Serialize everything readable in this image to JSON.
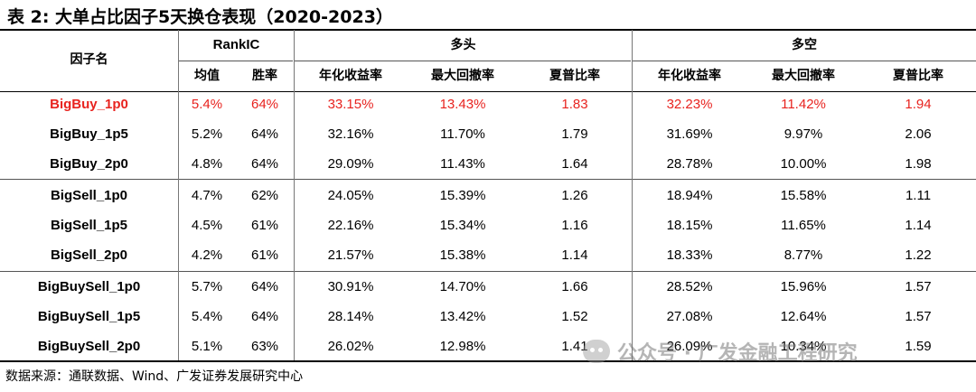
{
  "title": "表 2:  大单占比因子5天换仓表现（2020-2023）",
  "source": "数据来源：通联数据、Wind、广发证券发展研究中心",
  "watermark": "公众号 · 广发金融工程研究",
  "headers": {
    "factor": "因子名",
    "group_rankic": "RankIC",
    "group_long": "多头",
    "group_longshort": "多空",
    "mean": "均值",
    "winrate": "胜率",
    "long_ann": "年化收益率",
    "long_mdd": "最大回撤率",
    "long_sharpe": "夏普比率",
    "ls_ann": "年化收益率",
    "ls_mdd": "最大回撤率",
    "ls_sharpe": "夏普比率"
  },
  "highlight_color": "#e8231f",
  "rows": [
    {
      "name": "BigBuy_1p0",
      "highlight": true,
      "mean": "5.4%",
      "winrate": "64%",
      "long_ann": "33.15%",
      "long_mdd": "13.43%",
      "long_sharpe": "1.83",
      "ls_ann": "32.23%",
      "ls_mdd": "11.42%",
      "ls_sharpe": "1.94"
    },
    {
      "name": "BigBuy_1p5",
      "highlight": false,
      "mean": "5.2%",
      "winrate": "64%",
      "long_ann": "32.16%",
      "long_mdd": "11.70%",
      "long_sharpe": "1.79",
      "ls_ann": "31.69%",
      "ls_mdd": "9.97%",
      "ls_sharpe": "2.06"
    },
    {
      "name": "BigBuy_2p0",
      "highlight": false,
      "mean": "4.8%",
      "winrate": "64%",
      "long_ann": "29.09%",
      "long_mdd": "11.43%",
      "long_sharpe": "1.64",
      "ls_ann": "28.78%",
      "ls_mdd": "10.00%",
      "ls_sharpe": "1.98"
    },
    {
      "name": "BigSell_1p0",
      "highlight": false,
      "mean": "4.7%",
      "winrate": "62%",
      "long_ann": "24.05%",
      "long_mdd": "15.39%",
      "long_sharpe": "1.26",
      "ls_ann": "18.94%",
      "ls_mdd": "15.58%",
      "ls_sharpe": "1.11"
    },
    {
      "name": "BigSell_1p5",
      "highlight": false,
      "mean": "4.5%",
      "winrate": "61%",
      "long_ann": "22.16%",
      "long_mdd": "15.34%",
      "long_sharpe": "1.16",
      "ls_ann": "18.15%",
      "ls_mdd": "11.65%",
      "ls_sharpe": "1.14"
    },
    {
      "name": "BigSell_2p0",
      "highlight": false,
      "mean": "4.2%",
      "winrate": "61%",
      "long_ann": "21.57%",
      "long_mdd": "15.38%",
      "long_sharpe": "1.14",
      "ls_ann": "18.33%",
      "ls_mdd": "8.77%",
      "ls_sharpe": "1.22"
    },
    {
      "name": "BigBuySell_1p0",
      "highlight": false,
      "mean": "5.7%",
      "winrate": "64%",
      "long_ann": "30.91%",
      "long_mdd": "14.70%",
      "long_sharpe": "1.66",
      "ls_ann": "28.52%",
      "ls_mdd": "15.96%",
      "ls_sharpe": "1.57"
    },
    {
      "name": "BigBuySell_1p5",
      "highlight": false,
      "mean": "5.4%",
      "winrate": "64%",
      "long_ann": "28.14%",
      "long_mdd": "13.42%",
      "long_sharpe": "1.52",
      "ls_ann": "27.08%",
      "ls_mdd": "12.64%",
      "ls_sharpe": "1.57"
    },
    {
      "name": "BigBuySell_2p0",
      "highlight": false,
      "mean": "5.1%",
      "winrate": "63%",
      "long_ann": "26.02%",
      "long_mdd": "12.98%",
      "long_sharpe": "1.41",
      "ls_ann": "26.09%",
      "ls_mdd": "10.34%",
      "ls_sharpe": "1.59"
    }
  ]
}
